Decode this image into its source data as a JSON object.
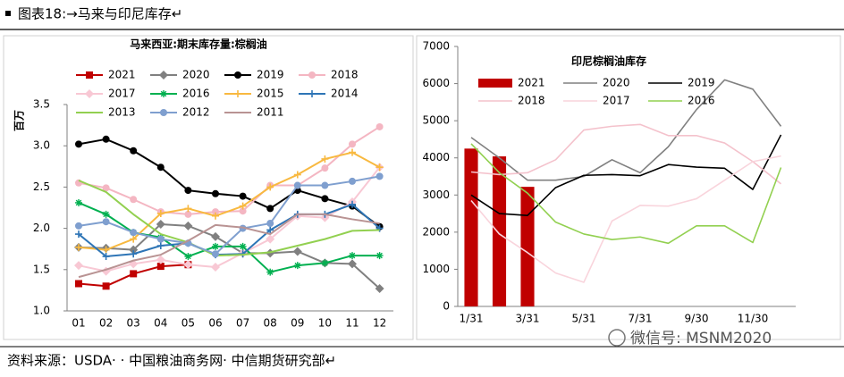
{
  "title": "图表18:→马来与印尼库存↵",
  "source": "资料来源：USDA· · 中国粮油商务网· 中信期货研究部↵",
  "watermark": "微信号: MSNM2020",
  "chart_data": [
    {
      "type": "line",
      "title": "马来西亚:期末库存量:棕榈油",
      "y_label": "百万",
      "categories": [
        "01",
        "02",
        "03",
        "04",
        "05",
        "06",
        "07",
        "08",
        "09",
        "10",
        "11",
        "12"
      ],
      "ylim": [
        1.0,
        3.5
      ],
      "yticks": [
        {
          "value": 1.0,
          "label": "1.0"
        },
        1.5,
        {
          "value": 2.0,
          "label": "2.0"
        },
        2.5,
        {
          "value": 3.0,
          "label": "3.0"
        },
        3.5
      ],
      "series": [
        {
          "name": "2021",
          "color": "#c00000",
          "marker": "square",
          "values": [
            1.33,
            1.3,
            1.45,
            1.54,
            1.56,
            null,
            null,
            null,
            null,
            null,
            null,
            null
          ]
        },
        {
          "name": "2020",
          "color": "#808080",
          "marker": "diamond",
          "values": [
            1.77,
            1.76,
            1.74,
            2.05,
            2.03,
            1.9,
            1.7,
            1.7,
            1.72,
            1.58,
            1.57,
            1.27
          ]
        },
        {
          "name": "2019",
          "color": "#000000",
          "marker": "circle",
          "values": [
            3.02,
            3.08,
            2.94,
            2.74,
            2.46,
            2.42,
            2.39,
            2.24,
            2.46,
            2.36,
            2.27,
            2.02
          ]
        },
        {
          "name": "2018",
          "color": "#f4b6c2",
          "marker": "circle",
          "values": [
            2.55,
            2.49,
            2.35,
            2.2,
            2.17,
            2.2,
            2.21,
            2.52,
            2.52,
            2.73,
            3.02,
            3.23
          ]
        },
        {
          "name": "2017",
          "color": "#f8c8d4",
          "marker": "diamond",
          "values": [
            1.55,
            1.48,
            1.57,
            1.62,
            1.56,
            1.53,
            1.7,
            1.87,
            2.15,
            2.13,
            2.32,
            2.74
          ]
        },
        {
          "name": "2016",
          "color": "#00b050",
          "marker": "star",
          "values": [
            2.31,
            2.17,
            1.95,
            1.89,
            1.66,
            1.78,
            1.78,
            1.47,
            1.55,
            1.58,
            1.67,
            1.67
          ]
        },
        {
          "name": "2015",
          "color": "#f8b940",
          "marker": "plus",
          "values": [
            1.77,
            1.74,
            1.87,
            2.18,
            2.24,
            2.15,
            2.27,
            2.5,
            2.65,
            2.84,
            2.92,
            2.74
          ]
        },
        {
          "name": "2014",
          "color": "#2e75b6",
          "marker": "plus",
          "values": [
            1.93,
            1.66,
            1.69,
            1.79,
            1.82,
            1.68,
            1.69,
            1.98,
            2.17,
            2.17,
            2.29,
            2.0
          ]
        },
        {
          "name": "2013",
          "color": "#92d050",
          "marker": "none",
          "values": [
            2.58,
            2.44,
            2.17,
            1.93,
            1.83,
            1.67,
            1.68,
            1.71,
            1.79,
            1.87,
            1.97,
            1.98
          ]
        },
        {
          "name": "2012",
          "color": "#7f9fcf",
          "marker": "circle",
          "values": [
            2.03,
            2.08,
            1.95,
            1.87,
            1.82,
            1.69,
            2.0,
            2.06,
            2.52,
            2.52,
            2.57,
            2.63
          ]
        },
        {
          "name": "2011",
          "color": "#b99393",
          "marker": "none",
          "values": [
            1.41,
            1.5,
            1.61,
            1.68,
            1.85,
            2.04,
            2.01,
            1.93,
            2.17,
            2.17,
            2.11,
            2.06
          ]
        }
      ]
    },
    {
      "type": "combo",
      "title": "印尼棕榈油库存",
      "categories": [
        "1/31",
        null,
        "3/31",
        null,
        "5/31",
        null,
        "7/31",
        null,
        "9/30",
        null,
        "11/30",
        null
      ],
      "ylim": [
        0,
        7000
      ],
      "yticks": [
        0,
        1000,
        2000,
        3000,
        4000,
        5000,
        6000,
        7000
      ],
      "series": [
        {
          "name": "2021",
          "type": "bar",
          "color": "#c00000",
          "values": [
            4250,
            4040,
            3220,
            null,
            null,
            null,
            null,
            null,
            null,
            null,
            null,
            null
          ]
        },
        {
          "name": "2020",
          "type": "line",
          "color": "#808080",
          "values": [
            4550,
            4000,
            3400,
            3400,
            3500,
            3950,
            3600,
            4300,
            5300,
            6100,
            5850,
            4850
          ]
        },
        {
          "name": "2019",
          "type": "line",
          "color": "#000000",
          "values": [
            3000,
            2500,
            2450,
            3200,
            3530,
            3550,
            3520,
            3820,
            3750,
            3720,
            3150,
            4620
          ]
        },
        {
          "name": "2018",
          "type": "line",
          "color": "#f4c2cc",
          "values": [
            3620,
            3550,
            3600,
            3950,
            4750,
            4850,
            4900,
            4600,
            4600,
            4400,
            3900,
            3300
          ]
        },
        {
          "name": "2017",
          "type": "line",
          "color": "#f9d4dc",
          "values": [
            2850,
            1950,
            1450,
            900,
            650,
            2300,
            2720,
            2700,
            2900,
            3400,
            3900,
            4050
          ]
        },
        {
          "name": "2016",
          "type": "line",
          "color": "#92d050",
          "values": [
            4380,
            3600,
            3050,
            2270,
            1950,
            1800,
            1870,
            1700,
            2170,
            2170,
            1720,
            3740
          ]
        }
      ]
    }
  ]
}
